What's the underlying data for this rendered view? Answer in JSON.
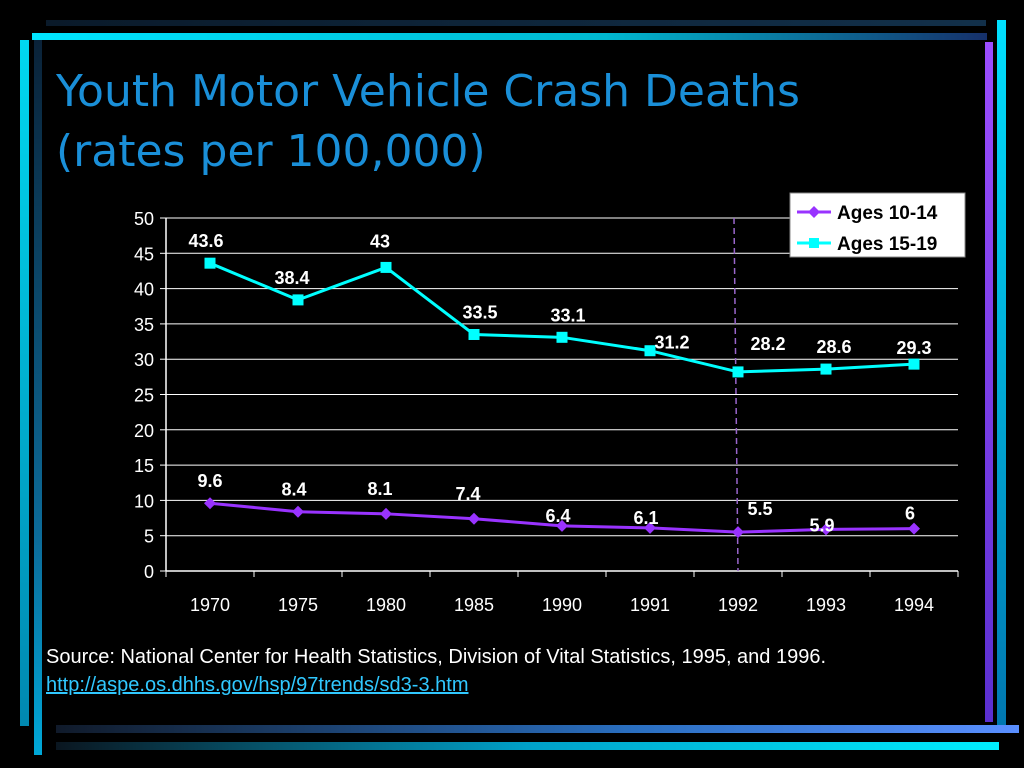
{
  "slide": {
    "title_line1": "Youth Motor Vehicle Crash Deaths",
    "title_line2": "(rates per 100,000)",
    "source_text": "Source: National Center for Health Statistics, Division of Vital Statistics, 1995, and 1996.",
    "source_link": "http://aspe.os.dhhs.gov/hsp/97trends/sd3-3.htm"
  },
  "colors": {
    "background": "#000000",
    "title": "#1a8fd8",
    "accent_cyan": "#00e5ff",
    "accent_purple": "#8844ff",
    "plot_bg": "#ffffff",
    "series_1": "#9933ff",
    "series_2": "#00ffff",
    "marker_line": "#9966cc"
  },
  "chart_data": {
    "type": "line",
    "title": "",
    "xlabel": "",
    "ylabel": "",
    "categories": [
      "1970",
      "1975",
      "1980",
      "1985",
      "1990",
      "1991",
      "1992",
      "1993",
      "1994"
    ],
    "ylim": [
      0,
      50
    ],
    "yticks": [
      0,
      5,
      10,
      15,
      20,
      25,
      30,
      35,
      40,
      45,
      50
    ],
    "grid": true,
    "legend": "top-right",
    "vertical_marker_at": "1992",
    "series": [
      {
        "name": "Ages 10-14",
        "marker": "diamond",
        "color": "#9933ff",
        "values": [
          9.6,
          8.4,
          8.1,
          7.4,
          6.4,
          6.1,
          5.5,
          5.9,
          6
        ],
        "labels": [
          "9.6",
          "8.4",
          "8.1",
          "7.4",
          "6.4",
          "6.1",
          "5.5",
          "5.9",
          "6"
        ]
      },
      {
        "name": "Ages 15-19",
        "marker": "square",
        "color": "#00ffff",
        "values": [
          43.6,
          38.4,
          43,
          33.5,
          33.1,
          31.2,
          28.2,
          28.6,
          29.3
        ],
        "labels": [
          "43.6",
          "38.4",
          "43",
          "33.5",
          "33.1",
          "31.2",
          "28.2",
          "28.6",
          "29.3"
        ]
      }
    ]
  }
}
